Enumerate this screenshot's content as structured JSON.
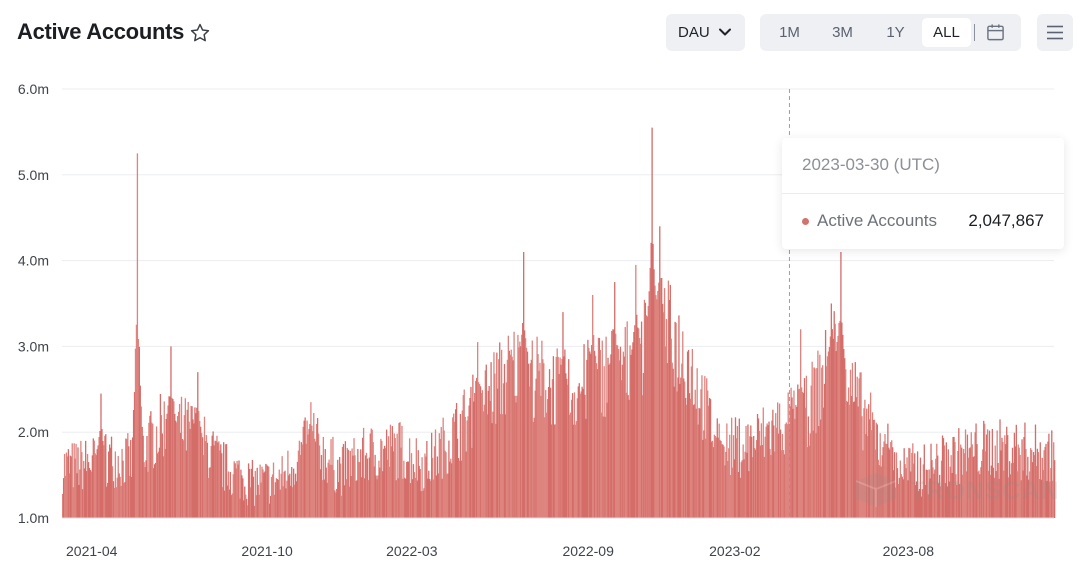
{
  "header": {
    "title": "Active Accounts",
    "metric_select": {
      "selected": "DAU"
    },
    "ranges": [
      {
        "label": "1M",
        "active": false
      },
      {
        "label": "3M",
        "active": false
      },
      {
        "label": "1Y",
        "active": false
      },
      {
        "label": "ALL",
        "active": true
      }
    ]
  },
  "tooltip": {
    "date": "2023-03-30 (UTC)",
    "series_name": "Active Accounts",
    "value": "2,047,867"
  },
  "watermark": "TRONSCAN",
  "colors": {
    "bar": "#d46d69",
    "accent": "#d2736f",
    "grid": "#ebedf0",
    "axis_text": "#3f444b"
  },
  "chart_data": {
    "type": "bar",
    "title": "Active Accounts",
    "xlabel": "",
    "ylabel": "",
    "ylim": [
      1.0,
      6.0
    ],
    "y_ticks": [
      "1.0m",
      "2.0m",
      "3.0m",
      "4.0m",
      "5.0m",
      "6.0m"
    ],
    "x_ticks": [
      "2021-04",
      "2021-10",
      "2022-03",
      "2022-09",
      "2023-02",
      "2023-08"
    ],
    "x_range": [
      "2021-03-01",
      "2023-12-31"
    ],
    "grid": true,
    "cursor_date": "2023-03-30",
    "series": [
      {
        "name": "Active Accounts",
        "unit": "million",
        "monthly": [
          {
            "month": "2021-03",
            "value": 1.6
          },
          {
            "month": "2021-04",
            "value": 1.7
          },
          {
            "month": "2021-05",
            "value": 1.65
          },
          {
            "month": "2021-06",
            "value": 2.1
          },
          {
            "month": "2021-07",
            "value": 2.0
          },
          {
            "month": "2021-08",
            "value": 1.6
          },
          {
            "month": "2021-09",
            "value": 1.4
          },
          {
            "month": "2021-10",
            "value": 1.45
          },
          {
            "month": "2021-11",
            "value": 1.9
          },
          {
            "month": "2021-12",
            "value": 1.55
          },
          {
            "month": "2022-01",
            "value": 1.75
          },
          {
            "month": "2022-02",
            "value": 1.8
          },
          {
            "month": "2022-03",
            "value": 1.6
          },
          {
            "month": "2022-04",
            "value": 2.0
          },
          {
            "month": "2022-05",
            "value": 2.4
          },
          {
            "month": "2022-06",
            "value": 2.75
          },
          {
            "month": "2022-07",
            "value": 2.6
          },
          {
            "month": "2022-08",
            "value": 2.45
          },
          {
            "month": "2022-09",
            "value": 2.7
          },
          {
            "month": "2022-10",
            "value": 2.8
          },
          {
            "month": "2022-11",
            "value": 3.3
          },
          {
            "month": "2022-12",
            "value": 2.8
          },
          {
            "month": "2023-01",
            "value": 1.8
          },
          {
            "month": "2023-02",
            "value": 1.85
          },
          {
            "month": "2023-03",
            "value": 2.05
          },
          {
            "month": "2023-04",
            "value": 2.2
          },
          {
            "month": "2023-05",
            "value": 2.9
          },
          {
            "month": "2023-06",
            "value": 2.2
          },
          {
            "month": "2023-07",
            "value": 1.6
          },
          {
            "month": "2023-08",
            "value": 1.55
          },
          {
            "month": "2023-09",
            "value": 1.7
          },
          {
            "month": "2023-10",
            "value": 1.8
          },
          {
            "month": "2023-11",
            "value": 1.8
          },
          {
            "month": "2023-12",
            "value": 1.75
          }
        ],
        "peaks": [
          {
            "date": "2021-04-10",
            "value": 2.45
          },
          {
            "date": "2021-05-18",
            "value": 5.25
          },
          {
            "date": "2021-06-22",
            "value": 3.0
          },
          {
            "date": "2021-07-20",
            "value": 2.7
          },
          {
            "date": "2021-11-15",
            "value": 2.35
          },
          {
            "date": "2022-05-08",
            "value": 3.05
          },
          {
            "date": "2022-06-25",
            "value": 4.1
          },
          {
            "date": "2022-08-05",
            "value": 3.4
          },
          {
            "date": "2022-09-05",
            "value": 3.6
          },
          {
            "date": "2022-09-28",
            "value": 3.75
          },
          {
            "date": "2022-10-20",
            "value": 3.95
          },
          {
            "date": "2022-11-06",
            "value": 5.55
          },
          {
            "date": "2022-11-14",
            "value": 4.4
          },
          {
            "date": "2023-01-15",
            "value": 2.1
          },
          {
            "date": "2023-03-30",
            "value": 2.05
          },
          {
            "date": "2023-04-10",
            "value": 3.2
          },
          {
            "date": "2023-05-12",
            "value": 3.5
          },
          {
            "date": "2023-05-22",
            "value": 4.1
          },
          {
            "date": "2023-07-10",
            "value": 2.1
          }
        ]
      }
    ]
  }
}
